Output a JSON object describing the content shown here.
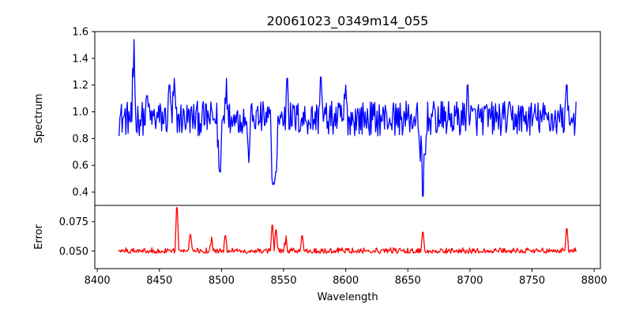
{
  "chart_data": {
    "type": "line",
    "title": "20061023_0349m14_055",
    "xlabel": "Wavelength",
    "xlim": [
      8398,
      8805
    ],
    "x_ticks": [
      8400,
      8450,
      8500,
      8550,
      8600,
      8650,
      8700,
      8750,
      8800
    ],
    "grid": false,
    "panels": [
      {
        "name": "spectrum",
        "ylabel": "Spectrum",
        "ylim": [
          0.3,
          1.6
        ],
        "y_ticks": [
          0.4,
          0.6,
          0.8,
          1.0,
          1.2,
          1.4,
          1.6
        ],
        "y_tick_labels": [
          "0.4",
          "0.6",
          "0.8",
          "1.0",
          "1.2",
          "1.4",
          "1.6"
        ],
        "color": "#0000ff",
        "x_start": 8417,
        "x_end": 8786,
        "baseline": 0.95,
        "noise": 0.13,
        "features": [
          {
            "x": 8429.5,
            "value": 1.54
          },
          {
            "x": 8440,
            "value": 1.12
          },
          {
            "x": 8458,
            "value": 1.2
          },
          {
            "x": 8462,
            "value": 1.25
          },
          {
            "x": 8498,
            "value": 0.58
          },
          {
            "x": 8499,
            "value": 0.55
          },
          {
            "x": 8504,
            "value": 1.25
          },
          {
            "x": 8510,
            "value": 0.98
          },
          {
            "x": 8522,
            "value": 0.62
          },
          {
            "x": 8541,
            "value": 0.5
          },
          {
            "x": 8542,
            "value": 0.45
          },
          {
            "x": 8543,
            "value": 0.46
          },
          {
            "x": 8544,
            "value": 0.55
          },
          {
            "x": 8553,
            "value": 1.25
          },
          {
            "x": 8580,
            "value": 1.26
          },
          {
            "x": 8600,
            "value": 1.2
          },
          {
            "x": 8660,
            "value": 0.63
          },
          {
            "x": 8662,
            "value": 0.37
          },
          {
            "x": 8664,
            "value": 0.68
          },
          {
            "x": 8698,
            "value": 1.2
          },
          {
            "x": 8778,
            "value": 1.2
          }
        ]
      },
      {
        "name": "error",
        "ylabel": "Error",
        "ylim": [
          0.035,
          0.089
        ],
        "y_ticks": [
          0.05,
          0.075
        ],
        "y_tick_labels": [
          "0.050",
          "0.075"
        ],
        "color": "#ff0000",
        "x_start": 8417,
        "x_end": 8786,
        "baseline": 0.05,
        "noise": 0.004,
        "features": [
          {
            "x": 8464,
            "value": 0.087
          },
          {
            "x": 8475,
            "value": 0.064
          },
          {
            "x": 8492,
            "value": 0.062
          },
          {
            "x": 8503,
            "value": 0.063
          },
          {
            "x": 8541,
            "value": 0.072
          },
          {
            "x": 8544,
            "value": 0.068
          },
          {
            "x": 8552,
            "value": 0.063
          },
          {
            "x": 8565,
            "value": 0.063
          },
          {
            "x": 8662,
            "value": 0.066
          },
          {
            "x": 8778,
            "value": 0.069
          }
        ]
      }
    ]
  }
}
